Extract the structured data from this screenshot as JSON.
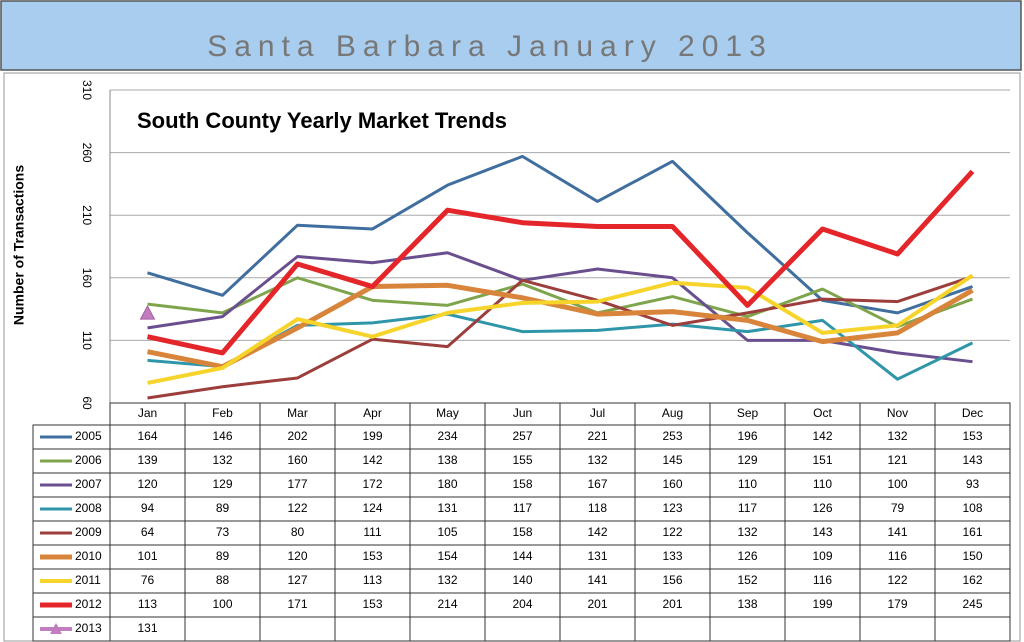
{
  "header": {
    "title": "Santa Barbara January 2013"
  },
  "chart_data": {
    "type": "line",
    "title": "South County Yearly Market Trends",
    "y_label": "Number of Transactions",
    "categories": [
      "Jan",
      "Feb",
      "Mar",
      "Apr",
      "May",
      "Jun",
      "Jul",
      "Aug",
      "Sep",
      "Oct",
      "Nov",
      "Dec"
    ],
    "ylim": [
      60,
      310
    ],
    "yticks": [
      60,
      110,
      160,
      210,
      260,
      310
    ],
    "grid": true,
    "series": [
      {
        "name": "2005",
        "color": "#3f6e9f",
        "width": 3,
        "values": [
          164,
          146,
          202,
          199,
          234,
          257,
          221,
          253,
          196,
          142,
          132,
          153
        ]
      },
      {
        "name": "2006",
        "color": "#7fa54c",
        "width": 3,
        "values": [
          139,
          132,
          160,
          142,
          138,
          155,
          132,
          145,
          129,
          151,
          121,
          143
        ]
      },
      {
        "name": "2007",
        "color": "#6a4f8f",
        "width": 3,
        "values": [
          120,
          129,
          177,
          172,
          180,
          158,
          167,
          160,
          110,
          110,
          100,
          93
        ]
      },
      {
        "name": "2008",
        "color": "#2f96aa",
        "width": 3,
        "values": [
          94,
          89,
          122,
          124,
          131,
          117,
          118,
          123,
          117,
          126,
          79,
          108
        ]
      },
      {
        "name": "2009",
        "color": "#9c3e3b",
        "width": 3,
        "values": [
          64,
          73,
          80,
          111,
          105,
          158,
          142,
          122,
          132,
          143,
          141,
          161
        ]
      },
      {
        "name": "2010",
        "color": "#d8853b",
        "width": 5,
        "values": [
          101,
          89,
          120,
          153,
          154,
          144,
          131,
          133,
          126,
          109,
          116,
          150
        ]
      },
      {
        "name": "2011",
        "color": "#f7d42a",
        "width": 4,
        "values": [
          76,
          88,
          127,
          113,
          132,
          140,
          141,
          156,
          152,
          116,
          122,
          162
        ]
      },
      {
        "name": "2012",
        "color": "#e4262b",
        "width": 5,
        "values": [
          113,
          100,
          171,
          153,
          214,
          204,
          201,
          201,
          138,
          199,
          179,
          245
        ]
      },
      {
        "name": "2013",
        "color": "#c27dc0",
        "marker": "triangle",
        "values": [
          131,
          null,
          null,
          null,
          null,
          null,
          null,
          null,
          null,
          null,
          null,
          null
        ]
      }
    ]
  }
}
